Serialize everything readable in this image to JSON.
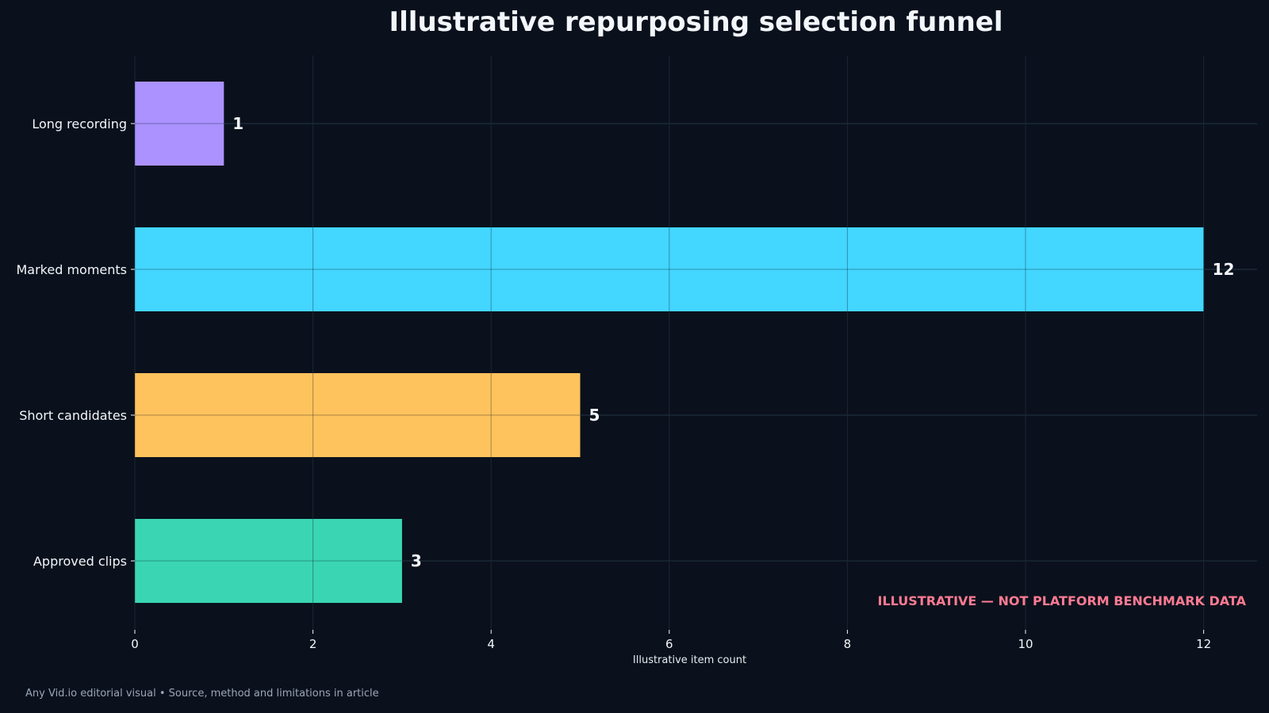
{
  "chart_data": {
    "type": "bar",
    "orientation": "horizontal",
    "title": "Illustrative repurposing selection funnel",
    "categories": [
      "Long recording",
      "Marked moments",
      "Short candidates",
      "Approved clips"
    ],
    "values": [
      1,
      12,
      5,
      3
    ],
    "value_labels": [
      "1",
      "12",
      "5",
      "3"
    ],
    "colors": [
      "#ab92ff",
      "#43d6ff",
      "#fec35d",
      "#3ad6b4"
    ],
    "xlabel": "Illustrative item count",
    "ylabel": "",
    "xlim": [
      0,
      12.6
    ],
    "xticks": [
      0,
      2,
      4,
      6,
      8,
      10,
      12
    ],
    "xtick_labels": [
      "0",
      "2",
      "4",
      "6",
      "8",
      "10",
      "12"
    ],
    "grid": true,
    "annotation": "ILLUSTRATIVE — NOT PLATFORM BENCHMARK DATA",
    "annotation_color": "#ff7a93"
  },
  "footer": {
    "note": "Any Vid.io editorial visual • Source, method and limitations in article"
  },
  "theme": {
    "background": "#0a111c",
    "grid_color": "#233242",
    "text_color": "#f3f6fb"
  }
}
